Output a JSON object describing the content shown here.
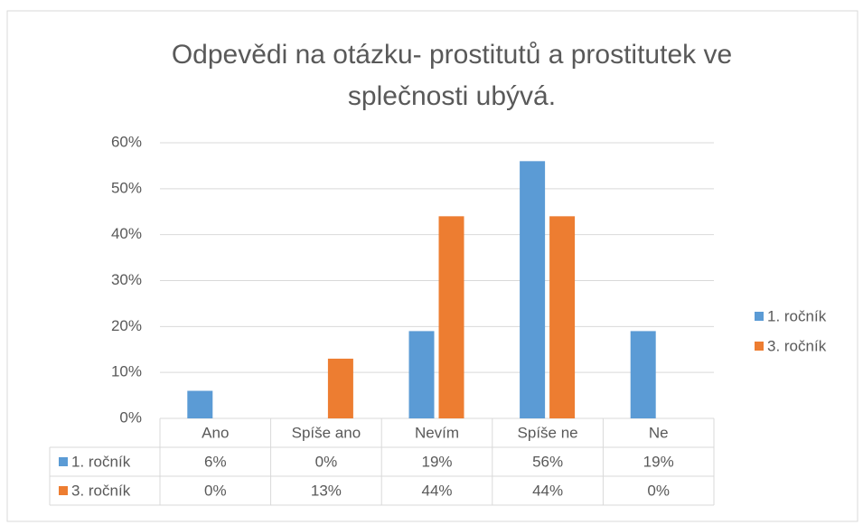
{
  "chart_data": {
    "type": "bar",
    "title": "Odpevědi na otázku- prostitutů a prostitutek ve splečnosti ubývá.",
    "categories": [
      "Ano",
      "Spíše ano",
      "Nevím",
      "Spíše ne",
      "Ne"
    ],
    "series": [
      {
        "name": "1. ročník",
        "color": "#5b9bd5",
        "values": [
          6,
          0,
          19,
          56,
          19
        ],
        "value_labels": [
          "6%",
          "0%",
          "19%",
          "56%",
          "19%"
        ]
      },
      {
        "name": "3. ročník",
        "color": "#ed7d31",
        "values": [
          0,
          13,
          44,
          44,
          0
        ],
        "value_labels": [
          "0%",
          "13%",
          "44%",
          "44%",
          "0%"
        ]
      }
    ],
    "ylim": [
      0,
      60
    ],
    "yticks": [
      {
        "value": 0,
        "label": "0%"
      },
      {
        "value": 10,
        "label": "10%"
      },
      {
        "value": 20,
        "label": "20%"
      },
      {
        "value": 30,
        "label": "30%"
      },
      {
        "value": 40,
        "label": "40%"
      },
      {
        "value": 50,
        "label": "50%"
      },
      {
        "value": 60,
        "label": "60%"
      }
    ],
    "grid": true,
    "legend": "right"
  }
}
